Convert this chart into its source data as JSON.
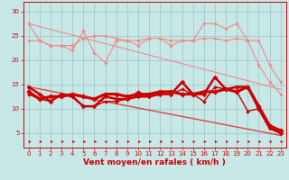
{
  "xlabel": "Vent moyen/en rafales ( km/h )",
  "xlim": [
    -0.5,
    23.5
  ],
  "ylim": [
    2,
    32
  ],
  "yticks": [
    5,
    10,
    15,
    20,
    25,
    30
  ],
  "xticks": [
    0,
    1,
    2,
    3,
    4,
    5,
    6,
    7,
    8,
    9,
    10,
    11,
    12,
    13,
    14,
    15,
    16,
    17,
    18,
    19,
    20,
    21,
    22,
    23
  ],
  "bg_color": "#c8e8e8",
  "grid_color": "#a0c8c8",
  "lines_light": [
    {
      "x": [
        0,
        1,
        2,
        3,
        4,
        5,
        6,
        7,
        8,
        9,
        10,
        11,
        12,
        13,
        14,
        15,
        16,
        17,
        18,
        19,
        20,
        21,
        22,
        23
      ],
      "y": [
        27.5,
        24.0,
        23.0,
        23.0,
        22.0,
        26.0,
        21.5,
        19.5,
        24.0,
        24.0,
        23.0,
        24.5,
        24.5,
        23.0,
        24.0,
        24.0,
        27.5,
        27.5,
        26.5,
        27.5,
        24.0,
        19.0,
        15.5,
        13.0
      ],
      "color": "#f08888",
      "lw": 0.8,
      "marker": "D",
      "ms": 1.8
    },
    {
      "x": [
        0,
        1,
        2,
        3,
        4,
        5,
        6,
        7,
        8,
        9,
        10,
        11,
        12,
        13,
        14,
        15,
        16,
        17,
        18,
        19,
        20,
        21,
        22,
        23
      ],
      "y": [
        24.0,
        24.0,
        23.0,
        23.0,
        23.0,
        24.5,
        25.0,
        25.0,
        24.5,
        24.0,
        24.0,
        24.5,
        24.5,
        24.0,
        24.0,
        24.0,
        24.5,
        24.5,
        24.0,
        24.5,
        24.0,
        24.0,
        19.0,
        15.5
      ],
      "color": "#f08888",
      "lw": 0.8,
      "marker": "D",
      "ms": 1.8
    },
    {
      "x": [
        0,
        23
      ],
      "y": [
        27.5,
        14.0
      ],
      "color": "#f08888",
      "lw": 0.8,
      "marker": null,
      "ms": 0
    },
    {
      "x": [
        0,
        23
      ],
      "y": [
        14.5,
        4.5
      ],
      "color": "#dd4444",
      "lw": 1.0,
      "marker": null,
      "ms": 0
    }
  ],
  "lines_dark": [
    {
      "x": [
        0,
        1,
        2,
        3,
        4,
        5,
        6,
        7,
        8,
        9,
        10,
        11,
        12,
        13,
        14,
        15,
        16,
        17,
        18,
        19,
        20,
        21,
        22,
        23
      ],
      "y": [
        14.5,
        13.0,
        11.5,
        13.0,
        12.5,
        10.5,
        10.5,
        12.5,
        12.0,
        12.0,
        12.5,
        12.5,
        13.0,
        13.0,
        15.5,
        13.0,
        13.0,
        16.5,
        14.0,
        14.5,
        14.5,
        10.0,
        6.0,
        5.0
      ],
      "color": "#cc0000",
      "lw": 1.8,
      "marker": "D",
      "ms": 2.5
    },
    {
      "x": [
        0,
        1,
        2,
        3,
        4,
        5,
        6,
        7,
        8,
        9,
        10,
        11,
        12,
        13,
        14,
        15,
        16,
        17,
        18,
        19,
        20,
        21,
        22,
        23
      ],
      "y": [
        13.0,
        12.0,
        11.5,
        13.0,
        12.5,
        10.5,
        10.5,
        11.5,
        11.5,
        12.0,
        13.5,
        12.5,
        13.0,
        13.0,
        14.0,
        13.0,
        11.5,
        14.5,
        14.0,
        13.5,
        9.5,
        10.0,
        6.0,
        5.0
      ],
      "color": "#cc0000",
      "lw": 1.0,
      "marker": "D",
      "ms": 2.0
    },
    {
      "x": [
        0,
        1,
        2,
        3,
        4,
        5,
        6,
        7,
        8,
        9,
        10,
        11,
        12,
        13,
        14,
        15,
        16,
        17,
        18,
        19,
        20,
        21,
        22,
        23
      ],
      "y": [
        13.5,
        12.0,
        12.5,
        12.5,
        13.0,
        12.5,
        12.0,
        13.0,
        13.0,
        12.5,
        13.0,
        13.0,
        13.5,
        13.5,
        13.0,
        13.0,
        13.5,
        13.5,
        14.0,
        13.5,
        14.5,
        10.5,
        6.5,
        5.5
      ],
      "color": "#cc0000",
      "lw": 2.2,
      "marker": "D",
      "ms": 2.8
    }
  ],
  "arrows_x": [
    0,
    1,
    2,
    3,
    4,
    5,
    6,
    7,
    8,
    9,
    10,
    11,
    12,
    13,
    14,
    15,
    16,
    17,
    18,
    19,
    20,
    21,
    22,
    23
  ],
  "arrows_color": "#cc0000",
  "font_color": "#cc0000",
  "tick_fontsize": 5.0,
  "xlabel_fontsize": 6.5
}
